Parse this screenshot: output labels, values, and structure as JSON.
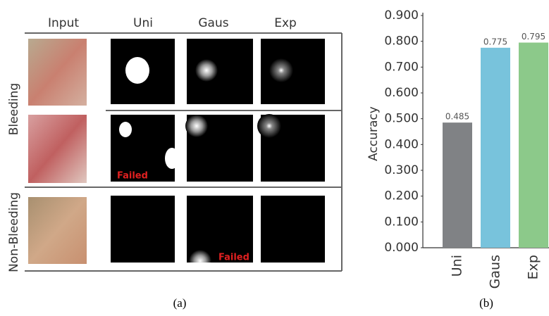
{
  "panel_a": {
    "columns": [
      "Input",
      "Uni",
      "Gaus",
      "Exp"
    ],
    "rows": [
      "Bleeding",
      "Non-Bleeding"
    ],
    "annotations": [
      "Failed",
      "Failed"
    ],
    "caption": "(a)"
  },
  "chart_data": {
    "type": "bar",
    "ylabel": "Accuracy",
    "caption": "(b)",
    "categories": [
      "Uni",
      "Gaus",
      "Exp"
    ],
    "values": [
      0.485,
      0.775,
      0.795
    ],
    "colors": [
      "#808285",
      "#78c3dc",
      "#8cc98a"
    ],
    "ylim": [
      0,
      0.9
    ],
    "yticks": [
      {
        "value": 0,
        "label": "0.000"
      },
      {
        "value": 0.1,
        "label": "0.100"
      },
      {
        "value": 0.2,
        "label": "0.200"
      },
      {
        "value": 0.3,
        "label": "0.300"
      },
      {
        "value": 0.4,
        "label": "0.400"
      },
      {
        "value": 0.5,
        "label": "0.500"
      },
      {
        "value": 0.6,
        "label": "0.600"
      },
      {
        "value": 0.7,
        "label": "0.700"
      },
      {
        "value": 0.8,
        "label": "0.800"
      },
      {
        "value": 0.9,
        "label": "0.900"
      }
    ]
  }
}
